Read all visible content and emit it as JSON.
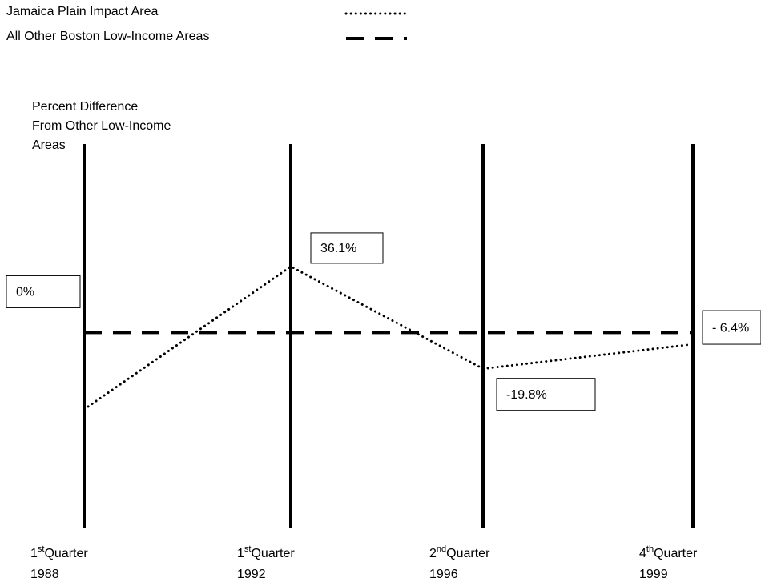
{
  "chart_data": {
    "type": "line",
    "y_label_lines": [
      "Percent Difference",
      "From Other Low-Income",
      "Areas"
    ],
    "categories": [
      {
        "number": "1",
        "suffix": "st",
        "period": "Quarter",
        "year": "1988"
      },
      {
        "number": "1",
        "suffix": "st",
        "period": "Quarter",
        "year": "1992"
      },
      {
        "number": "2",
        "suffix": "nd",
        "period": "Quarter",
        "year": "1996"
      },
      {
        "number": "4",
        "suffix": "th",
        "period": "Quarter",
        "year": "1999"
      }
    ],
    "ylim": [
      -107,
      103
    ],
    "series": [
      {
        "name": "Jamaica Plain Impact Area",
        "color": "#000000",
        "style": "dotted",
        "values": [
          -42,
          36.1,
          -19.8,
          -6.4
        ],
        "value_labels": [
          null,
          "36.1%",
          "-19.8%",
          "- 6.4%"
        ]
      },
      {
        "name": "All Other Boston Low-Income Areas",
        "color": "#000000",
        "style": "dashed",
        "values": [
          0,
          0,
          0,
          0
        ],
        "value_labels": [
          "0%",
          null,
          null,
          null
        ]
      }
    ]
  }
}
